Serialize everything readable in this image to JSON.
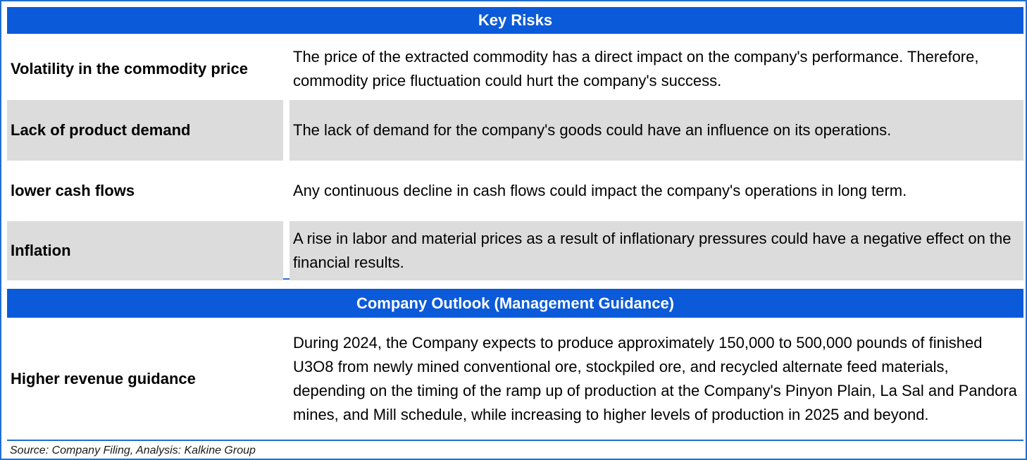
{
  "key_risks": {
    "title": "Key Risks",
    "rows": [
      {
        "label": "Volatility in the commodity price",
        "description": "The price of the extracted commodity has a direct impact on the company's performance. Therefore, commodity price fluctuation could hurt the company's success."
      },
      {
        "label": "Lack of product demand",
        "description": "The lack of demand for the company's goods could have an influence on its operations."
      },
      {
        "label": "lower cash flows",
        "description": "Any continuous decline in cash flows could impact the company's operations in long term."
      },
      {
        "label": "Inflation",
        "description": "A rise in labor and material prices as a result of inflationary pressures could have a negative effect on the financial results."
      }
    ]
  },
  "outlook": {
    "title": "Company Outlook (Management Guidance)",
    "rows": [
      {
        "label": "Higher revenue guidance",
        "description": "During 2024, the Company expects to produce approximately 150,000 to 500,000 pounds of finished U3O8 from newly mined conventional ore, stockpiled ore, and recycled alternate feed materials, depending on the timing of the ramp up of production at the Company's Pinyon Plain, La Sal and Pandora mines, and Mill schedule, while increasing to higher levels of production in 2025 and beyond."
      }
    ]
  },
  "footer": {
    "source": "Source: Company Filing, Analysis: Kalkine Group"
  },
  "colors": {
    "header_band": "#0b5ad9",
    "frame_border": "#1f6fd1",
    "shaded_row": "#dcdcdc"
  }
}
